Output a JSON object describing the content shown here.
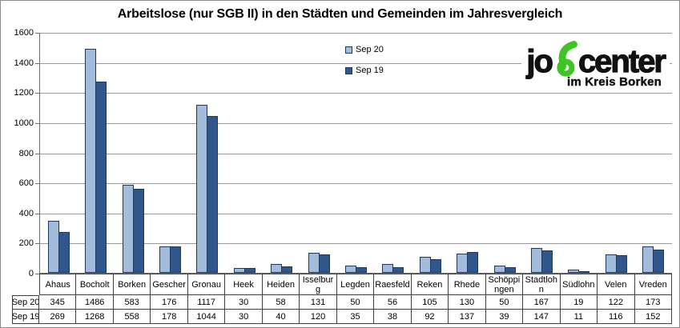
{
  "title": "Arbeitslose (nur SGB II) in den Städten und Gemeinden im Jahresvergleich",
  "logo": {
    "text_left": "jo",
    "text_right": "center",
    "subtitle": "im Kreis Borken",
    "green": "#3fc426",
    "black": "#111111"
  },
  "colors": {
    "series1_fill": "#a3bcdc",
    "series2_fill": "#31568b",
    "bar_border": "#1c3a5e",
    "gridline": "#9a9a9a",
    "axis": "#707070",
    "table_border": "#3f3f3f",
    "frame_border": "#8c8c8c",
    "text": "#000000"
  },
  "chart_data": {
    "type": "bar",
    "title": "Arbeitslose (nur SGB II) in den Städten und Gemeinden im Jahresvergleich",
    "categories": [
      "Ahaus",
      "Bocholt",
      "Borken",
      "Gescher",
      "Gronau",
      "Heek",
      "Heiden",
      "Isselburg",
      "Legden",
      "Raesfeld",
      "Reken",
      "Rhede",
      "Schöppingen",
      "Stadtlohn",
      "Südlohn",
      "Velen",
      "Vreden"
    ],
    "series": [
      {
        "name": "Sep 20",
        "color": "#a3bcdc",
        "values": [
          345,
          1486,
          583,
          176,
          1117,
          30,
          58,
          131,
          50,
          56,
          105,
          130,
          50,
          167,
          19,
          122,
          173
        ]
      },
      {
        "name": "Sep 19",
        "color": "#31568b",
        "values": [
          269,
          1268,
          558,
          178,
          1044,
          30,
          40,
          120,
          35,
          38,
          92,
          137,
          39,
          147,
          11,
          116,
          152
        ]
      }
    ],
    "xlabel": "",
    "ylabel": "",
    "ylim": [
      0,
      1600
    ],
    "yticks": [
      0,
      200,
      400,
      600,
      800,
      1000,
      1200,
      1400,
      1600
    ],
    "grid": true,
    "legend_position": "top-center",
    "data_table_shown": true
  }
}
